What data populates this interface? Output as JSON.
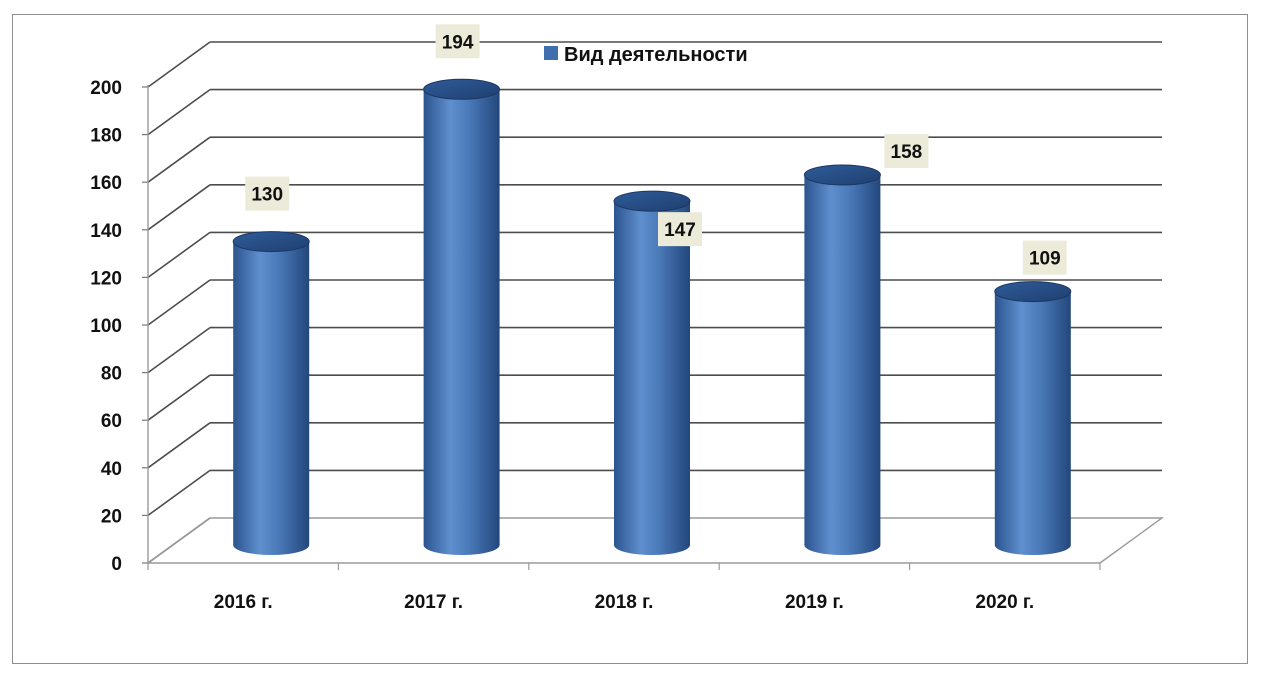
{
  "chart_data": {
    "type": "bar",
    "style": "3d-cylinder",
    "categories": [
      "2016 г.",
      "2017 г.",
      "2018 г.",
      "2019 г.",
      "2020 г."
    ],
    "series": [
      {
        "name": "Вид деятельности",
        "values": [
          130,
          194,
          147,
          158,
          109
        ],
        "color": "#3f6fad"
      }
    ],
    "ylim": [
      0,
      200
    ],
    "yticks": [
      0,
      20,
      40,
      60,
      80,
      100,
      120,
      140,
      160,
      180,
      200
    ],
    "grid": true,
    "legend": "top-center",
    "data_labels": [
      "130",
      "194",
      "147",
      "158",
      "109"
    ],
    "title": "",
    "xlabel": "",
    "ylabel": ""
  }
}
